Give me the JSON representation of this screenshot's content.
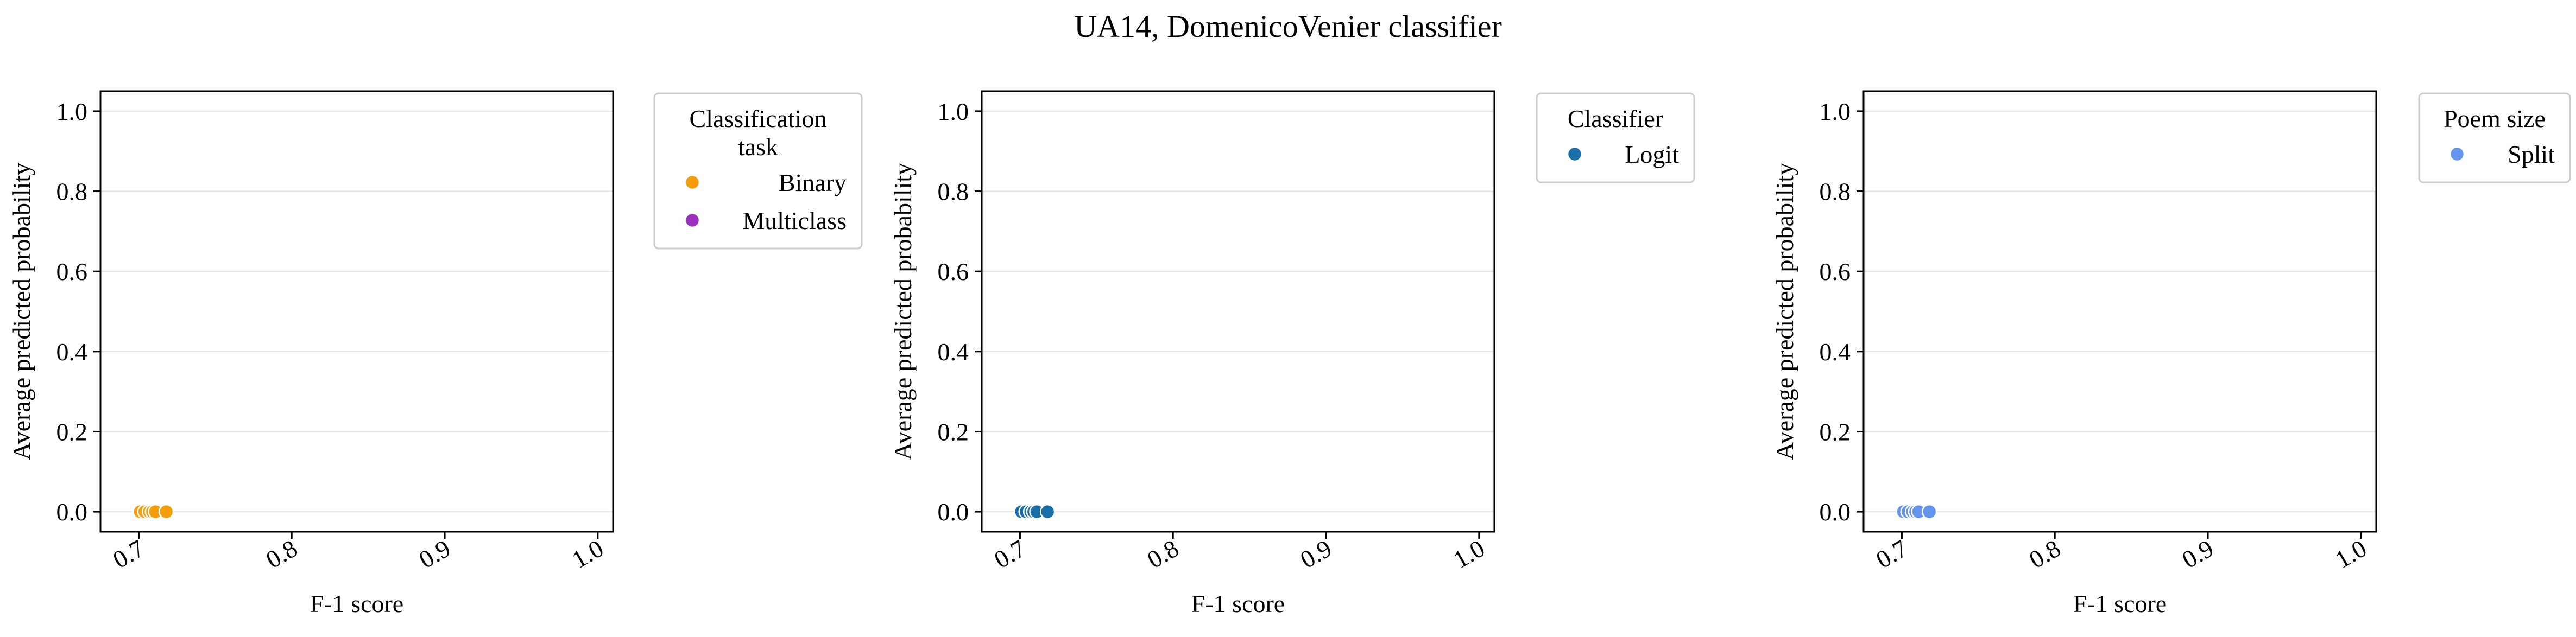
{
  "title": "UA14, DomenicoVenier classifier",
  "chart_data": [
    {
      "type": "scatter",
      "xlabel": "F-1 score",
      "ylabel": "Average predicted probability",
      "xlim": [
        0.675,
        1.01
      ],
      "ylim": [
        -0.05,
        1.05
      ],
      "x_ticks": [
        0.7,
        0.8,
        0.9,
        1.0
      ],
      "x_tick_labels": [
        "0.7",
        "0.8",
        "0.9",
        "1.0"
      ],
      "y_ticks": [
        0.0,
        0.2,
        0.4,
        0.6,
        0.8,
        1.0
      ],
      "y_tick_labels": [
        "0.0",
        "0.2",
        "0.4",
        "0.6",
        "0.8",
        "1.0"
      ],
      "grid": "y",
      "legend": {
        "title": "Classification\ntask",
        "placement": "outside upper right",
        "entries": [
          {
            "label": "Binary",
            "color": "#f59e0b"
          },
          {
            "label": "Multiclass",
            "color": "#9b30c0"
          }
        ]
      },
      "series": [
        {
          "name": "Binary",
          "color": "#f59e0b",
          "x": [
            0.701,
            0.704,
            0.707,
            0.709,
            0.711,
            0.718
          ],
          "y": [
            0.0,
            0.0,
            0.0,
            0.0,
            0.0,
            0.0
          ]
        }
      ]
    },
    {
      "type": "scatter",
      "xlabel": "F-1 score",
      "ylabel": "Average predicted probability",
      "xlim": [
        0.675,
        1.01
      ],
      "ylim": [
        -0.05,
        1.05
      ],
      "x_ticks": [
        0.7,
        0.8,
        0.9,
        1.0
      ],
      "x_tick_labels": [
        "0.7",
        "0.8",
        "0.9",
        "1.0"
      ],
      "y_ticks": [
        0.0,
        0.2,
        0.4,
        0.6,
        0.8,
        1.0
      ],
      "y_tick_labels": [
        "0.0",
        "0.2",
        "0.4",
        "0.6",
        "0.8",
        "1.0"
      ],
      "grid": "y",
      "legend": {
        "title": "Classifier",
        "placement": "outside upper right",
        "entries": [
          {
            "label": "Logit",
            "color": "#1a6fa8"
          }
        ]
      },
      "series": [
        {
          "name": "Logit",
          "color": "#1a6fa8",
          "x": [
            0.701,
            0.704,
            0.707,
            0.709,
            0.711,
            0.718
          ],
          "y": [
            0.0,
            0.0,
            0.0,
            0.0,
            0.0,
            0.0
          ]
        }
      ]
    },
    {
      "type": "scatter",
      "xlabel": "F-1 score",
      "ylabel": "Average predicted probability",
      "xlim": [
        0.675,
        1.01
      ],
      "ylim": [
        -0.05,
        1.05
      ],
      "x_ticks": [
        0.7,
        0.8,
        0.9,
        1.0
      ],
      "x_tick_labels": [
        "0.7",
        "0.8",
        "0.9",
        "1.0"
      ],
      "y_ticks": [
        0.0,
        0.2,
        0.4,
        0.6,
        0.8,
        1.0
      ],
      "y_tick_labels": [
        "0.0",
        "0.2",
        "0.4",
        "0.6",
        "0.8",
        "1.0"
      ],
      "grid": "y",
      "legend": {
        "title": "Poem size",
        "placement": "outside upper right",
        "entries": [
          {
            "label": "Split",
            "color": "#6495ed"
          }
        ]
      },
      "series": [
        {
          "name": "Split",
          "color": "#6495ed",
          "x": [
            0.701,
            0.704,
            0.707,
            0.709,
            0.711,
            0.718
          ],
          "y": [
            0.0,
            0.0,
            0.0,
            0.0,
            0.0,
            0.0
          ]
        }
      ]
    }
  ]
}
